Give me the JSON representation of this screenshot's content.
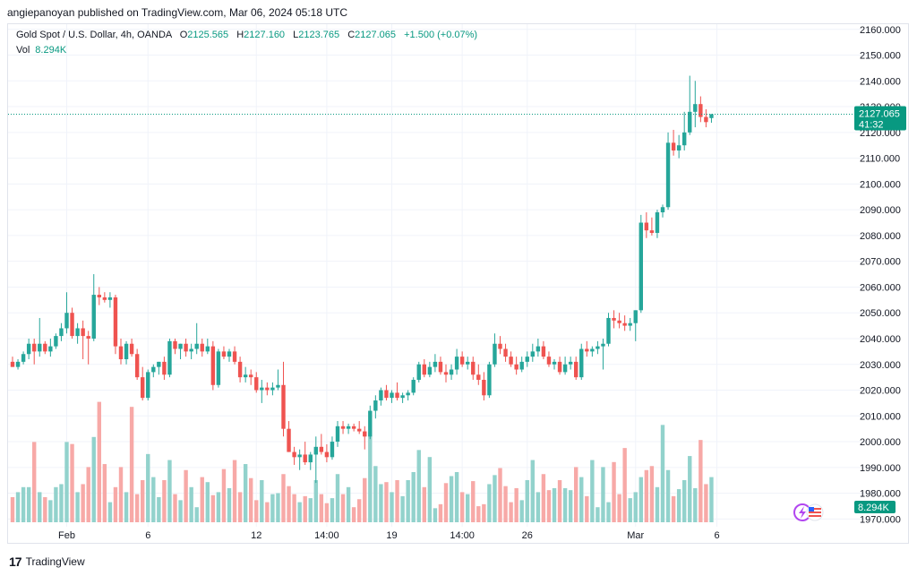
{
  "header": {
    "publisher_line": "angiepanoyan published on TradingView.com, Mar 06, 2024 05:18 UTC"
  },
  "legend": {
    "symbol": "Gold Spot / U.S. Dollar, 4h, OANDA",
    "open_label": "O",
    "open": "2125.565",
    "high_label": "H",
    "high": "2127.160",
    "low_label": "L",
    "low": "2123.765",
    "close_label": "C",
    "close": "2127.065",
    "change": "+1.500 (+0.07%)",
    "vol_label": "Vol",
    "vol_value": "8.294K"
  },
  "price_tag": {
    "price": "2127.065",
    "countdown": "41:32",
    "volume": "8.294K"
  },
  "footer": {
    "brand": "TradingView"
  },
  "colors": {
    "up": "#26a69a",
    "down": "#ef5350",
    "up_vol": "#92d2cc",
    "down_vol": "#f7a9a7",
    "tag": "#089981"
  },
  "icons": [
    "lightning-icon",
    "us-flag-icon"
  ],
  "chart_data": {
    "type": "candlestick",
    "title": "Gold Spot / U.S. Dollar, 4h, OANDA",
    "y_axis": {
      "ticks": [
        "2160.000",
        "2150.000",
        "2140.000",
        "2130.000",
        "2120.000",
        "2110.000",
        "2100.000",
        "2090.000",
        "2080.000",
        "2070.000",
        "2060.000",
        "2050.000",
        "2040.000",
        "2030.000",
        "2020.000",
        "2010.000",
        "2000.000",
        "1990.000",
        "1980.000",
        "1970.000"
      ],
      "range": [
        1967,
        2162
      ]
    },
    "x_axis": {
      "ticks": [
        {
          "label": "Feb",
          "index": 10
        },
        {
          "label": "6",
          "index": 25
        },
        {
          "label": "12",
          "index": 45
        },
        {
          "label": "14:00",
          "index": 58
        },
        {
          "label": "19",
          "index": 70
        },
        {
          "label": "14:00",
          "index": 83
        },
        {
          "label": "26",
          "index": 95
        },
        {
          "label": "Mar",
          "index": 115
        },
        {
          "label": "6",
          "index": 130
        }
      ]
    },
    "last_price": 2127.065,
    "candles": [
      [
        2031,
        2033,
        2029,
        2029
      ],
      [
        2029,
        2032,
        2028,
        2031
      ],
      [
        2031,
        2035,
        2030,
        2034
      ],
      [
        2034,
        2040,
        2032,
        2038
      ],
      [
        2038,
        2040,
        2030,
        2035
      ],
      [
        2035,
        2048,
        2033,
        2038
      ],
      [
        2038,
        2039,
        2034,
        2035
      ],
      [
        2035,
        2040,
        2033,
        2037
      ],
      [
        2037,
        2042,
        2036,
        2041
      ],
      [
        2041,
        2046,
        2039,
        2044
      ],
      [
        2044,
        2058,
        2042,
        2050
      ],
      [
        2050,
        2052,
        2040,
        2041
      ],
      [
        2041,
        2046,
        2038,
        2044
      ],
      [
        2044,
        2047,
        2032,
        2041
      ],
      [
        2041,
        2043,
        2030,
        2040
      ],
      [
        2040,
        2065,
        2039,
        2057
      ],
      [
        2057,
        2060,
        2053,
        2056
      ],
      [
        2056,
        2058,
        2054,
        2055
      ],
      [
        2055,
        2058,
        2052,
        2056
      ],
      [
        2056,
        2057,
        2034,
        2037
      ],
      [
        2037,
        2040,
        2030,
        2032
      ],
      [
        2032,
        2039,
        2030,
        2038
      ],
      [
        2038,
        2040,
        2033,
        2034
      ],
      [
        2034,
        2036,
        2024,
        2025
      ],
      [
        2025,
        2029,
        2016,
        2017
      ],
      [
        2017,
        2028,
        2016,
        2027
      ],
      [
        2027,
        2030,
        2025,
        2029
      ],
      [
        2029,
        2031,
        2026,
        2031
      ],
      [
        2031,
        2033,
        2024,
        2026
      ],
      [
        2026,
        2040,
        2025,
        2039
      ],
      [
        2039,
        2040,
        2034,
        2036
      ],
      [
        2036,
        2038,
        2032,
        2038
      ],
      [
        2038,
        2040,
        2033,
        2035
      ],
      [
        2035,
        2038,
        2032,
        2036
      ],
      [
        2036,
        2046,
        2034,
        2038
      ],
      [
        2038,
        2040,
        2033,
        2035
      ],
      [
        2035,
        2040,
        2034,
        2037
      ],
      [
        2037,
        2039,
        2020,
        2022
      ],
      [
        2022,
        2036,
        2021,
        2035
      ],
      [
        2035,
        2037,
        2032,
        2033
      ],
      [
        2033,
        2036,
        2031,
        2035
      ],
      [
        2035,
        2037,
        2030,
        2031
      ],
      [
        2031,
        2033,
        2023,
        2025
      ],
      [
        2025,
        2029,
        2023,
        2026
      ],
      [
        2026,
        2028,
        2022,
        2025
      ],
      [
        2025,
        2027,
        2019,
        2020
      ],
      [
        2020,
        2024,
        2015,
        2021
      ],
      [
        2021,
        2023,
        2018,
        2020
      ],
      [
        2020,
        2023,
        2018,
        2021
      ],
      [
        2021,
        2028,
        2020,
        2022
      ],
      [
        2022,
        2031,
        2002,
        2005
      ],
      [
        2005,
        2008,
        1996,
        1996
      ],
      [
        1996,
        1998,
        1991,
        1994
      ],
      [
        1994,
        1997,
        1989,
        1995
      ],
      [
        1995,
        2000,
        1991,
        1992
      ],
      [
        1992,
        1996,
        1989,
        1995
      ],
      [
        1995,
        2002,
        1984,
        1998
      ],
      [
        1998,
        2003,
        1995,
        1996
      ],
      [
        1996,
        1999,
        1992,
        1994
      ],
      [
        1994,
        2002,
        1993,
        2000
      ],
      [
        2000,
        2008,
        1998,
        2006
      ],
      [
        2006,
        2008,
        2003,
        2005
      ],
      [
        2005,
        2007,
        2003,
        2006
      ],
      [
        2006,
        2007,
        2004,
        2005
      ],
      [
        2005,
        2008,
        2003,
        2004
      ],
      [
        2004,
        2006,
        1997,
        2002
      ],
      [
        2002,
        2014,
        2001,
        2012
      ],
      [
        2012,
        2018,
        2009,
        2016
      ],
      [
        2016,
        2021,
        2014,
        2020
      ],
      [
        2020,
        2022,
        2016,
        2017
      ],
      [
        2017,
        2020,
        2015,
        2019
      ],
      [
        2019,
        2023,
        2016,
        2017
      ],
      [
        2017,
        2019,
        2015,
        2018
      ],
      [
        2018,
        2020,
        2016,
        2019
      ],
      [
        2019,
        2025,
        2018,
        2024
      ],
      [
        2024,
        2031,
        2023,
        2030
      ],
      [
        2030,
        2032,
        2025,
        2026
      ],
      [
        2026,
        2031,
        2025,
        2029
      ],
      [
        2029,
        2034,
        2027,
        2031
      ],
      [
        2031,
        2033,
        2026,
        2027
      ],
      [
        2027,
        2030,
        2023,
        2026
      ],
      [
        2026,
        2030,
        2024,
        2028
      ],
      [
        2028,
        2036,
        2026,
        2033
      ],
      [
        2033,
        2035,
        2029,
        2030
      ],
      [
        2030,
        2033,
        2028,
        2031
      ],
      [
        2031,
        2033,
        2024,
        2026
      ],
      [
        2026,
        2030,
        2022,
        2024
      ],
      [
        2024,
        2027,
        2016,
        2018
      ],
      [
        2018,
        2031,
        2017,
        2030
      ],
      [
        2030,
        2042,
        2029,
        2038
      ],
      [
        2038,
        2041,
        2034,
        2036
      ],
      [
        2036,
        2038,
        2031,
        2033
      ],
      [
        2033,
        2035,
        2029,
        2030
      ],
      [
        2030,
        2033,
        2026,
        2028
      ],
      [
        2028,
        2033,
        2027,
        2031
      ],
      [
        2031,
        2035,
        2029,
        2033
      ],
      [
        2033,
        2038,
        2031,
        2035
      ],
      [
        2035,
        2040,
        2033,
        2037
      ],
      [
        2037,
        2039,
        2032,
        2033
      ],
      [
        2033,
        2035,
        2029,
        2030
      ],
      [
        2030,
        2032,
        2028,
        2031
      ],
      [
        2031,
        2033,
        2026,
        2027
      ],
      [
        2027,
        2033,
        2026,
        2030
      ],
      [
        2030,
        2033,
        2028,
        2031
      ],
      [
        2031,
        2033,
        2024,
        2025
      ],
      [
        2025,
        2038,
        2024,
        2036
      ],
      [
        2036,
        2039,
        2033,
        2035
      ],
      [
        2035,
        2037,
        2033,
        2036
      ],
      [
        2036,
        2039,
        2034,
        2037
      ],
      [
        2037,
        2040,
        2028,
        2038
      ],
      [
        2038,
        2050,
        2037,
        2048
      ],
      [
        2048,
        2051,
        2044,
        2047
      ],
      [
        2047,
        2050,
        2044,
        2046
      ],
      [
        2046,
        2049,
        2043,
        2045
      ],
      [
        2045,
        2048,
        2043,
        2046
      ],
      [
        2046,
        2051,
        2039,
        2051
      ],
      [
        2051,
        2088,
        2050,
        2085
      ],
      [
        2085,
        2089,
        2079,
        2082
      ],
      [
        2082,
        2087,
        2080,
        2081
      ],
      [
        2081,
        2090,
        2079,
        2089
      ],
      [
        2089,
        2092,
        2087,
        2091
      ],
      [
        2091,
        2120,
        2090,
        2116
      ],
      [
        2116,
        2121,
        2111,
        2113
      ],
      [
        2113,
        2119,
        2110,
        2115
      ],
      [
        2115,
        2128,
        2113,
        2120
      ],
      [
        2120,
        2142,
        2119,
        2128
      ],
      [
        2128,
        2140,
        2122,
        2131
      ],
      [
        2131,
        2134,
        2124,
        2126
      ],
      [
        2126,
        2129,
        2122,
        2124
      ],
      [
        2125.565,
        2127.16,
        2123.765,
        2127.065
      ]
    ],
    "volume": [
      25,
      30,
      35,
      35,
      80,
      30,
      25,
      22,
      35,
      38,
      80,
      78,
      30,
      38,
      55,
      85,
      120,
      58,
      20,
      35,
      55,
      30,
      115,
      28,
      42,
      68,
      45,
      25,
      42,
      62,
      28,
      22,
      52,
      35,
      15,
      45,
      40,
      27,
      30,
      53,
      34,
      62,
      30,
      58,
      44,
      22,
      42,
      20,
      28,
      29,
      48,
      36,
      28,
      20,
      26,
      24,
      42,
      28,
      19,
      24,
      48,
      28,
      35,
      15,
      23,
      44,
      90,
      56,
      38,
      40,
      30,
      42,
      26,
      42,
      50,
      72,
      35,
      65,
      14,
      18,
      39,
      46,
      50,
      30,
      28,
      41,
      16,
      18,
      38,
      47,
      54,
      36,
      20,
      34,
      22,
      42,
      62,
      30,
      48,
      32,
      34,
      42,
      34,
      32,
      55,
      45,
      26,
      62,
      15,
      55,
      20,
      60,
      28,
      74,
      24,
      30,
      45,
      52,
      56,
      35,
      97,
      52,
      26,
      33,
      42,
      66,
      34,
      82,
      38,
      45
    ],
    "volume_scale_max": 125
  }
}
